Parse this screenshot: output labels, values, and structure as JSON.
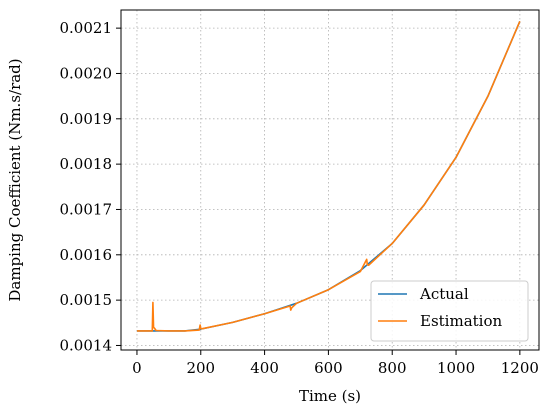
{
  "chart_data": {
    "type": "line",
    "title": "",
    "xlabel": "Time (s)",
    "ylabel": "Damping Coefficient (Nm.s/rad)",
    "xlim": [
      -50,
      1260
    ],
    "ylim": [
      0.00139,
      0.00214
    ],
    "x_ticks": [
      0,
      200,
      400,
      600,
      800,
      1000,
      1200
    ],
    "x_tick_labels": [
      "0",
      "200",
      "400",
      "600",
      "800",
      "1000",
      "1200"
    ],
    "y_ticks": [
      0.0014,
      0.0015,
      0.0016,
      0.0017,
      0.0018,
      0.0019,
      0.002,
      0.0021
    ],
    "y_tick_labels": [
      "0.0014",
      "0.0015",
      "0.0016",
      "0.0017",
      "0.0018",
      "0.0019",
      "0.0020",
      "0.0021"
    ],
    "grid": true,
    "legend_position": "bottom-right",
    "series": [
      {
        "name": "Actual",
        "color": "#1f77b4",
        "x": [
          0,
          100,
          150,
          200,
          300,
          400,
          500,
          600,
          700,
          800,
          900,
          1000,
          1100,
          1200
        ],
        "y": [
          0.001432,
          0.001432,
          0.001432,
          0.001436,
          0.001451,
          0.00147,
          0.001493,
          0.001523,
          0.001565,
          0.001625,
          0.00171,
          0.001815,
          0.00195,
          0.002115
        ]
      },
      {
        "name": "Estimation",
        "color": "#ff7f0e",
        "x": [
          0,
          40,
          48,
          50,
          52,
          55,
          60,
          100,
          150,
          195,
          198,
          200,
          205,
          300,
          400,
          480,
          482,
          485,
          500,
          600,
          700,
          720,
          722,
          726,
          800,
          900,
          1000,
          1100,
          1200
        ],
        "y": [
          0.001432,
          0.001432,
          0.001432,
          0.001495,
          0.00144,
          0.001438,
          0.001433,
          0.001432,
          0.001432,
          0.001434,
          0.001445,
          0.001437,
          0.001437,
          0.001451,
          0.00147,
          0.001487,
          0.001478,
          0.001483,
          0.001493,
          0.001523,
          0.001563,
          0.00159,
          0.001578,
          0.001577,
          0.001625,
          0.00171,
          0.001815,
          0.00195,
          0.002115
        ]
      }
    ]
  }
}
